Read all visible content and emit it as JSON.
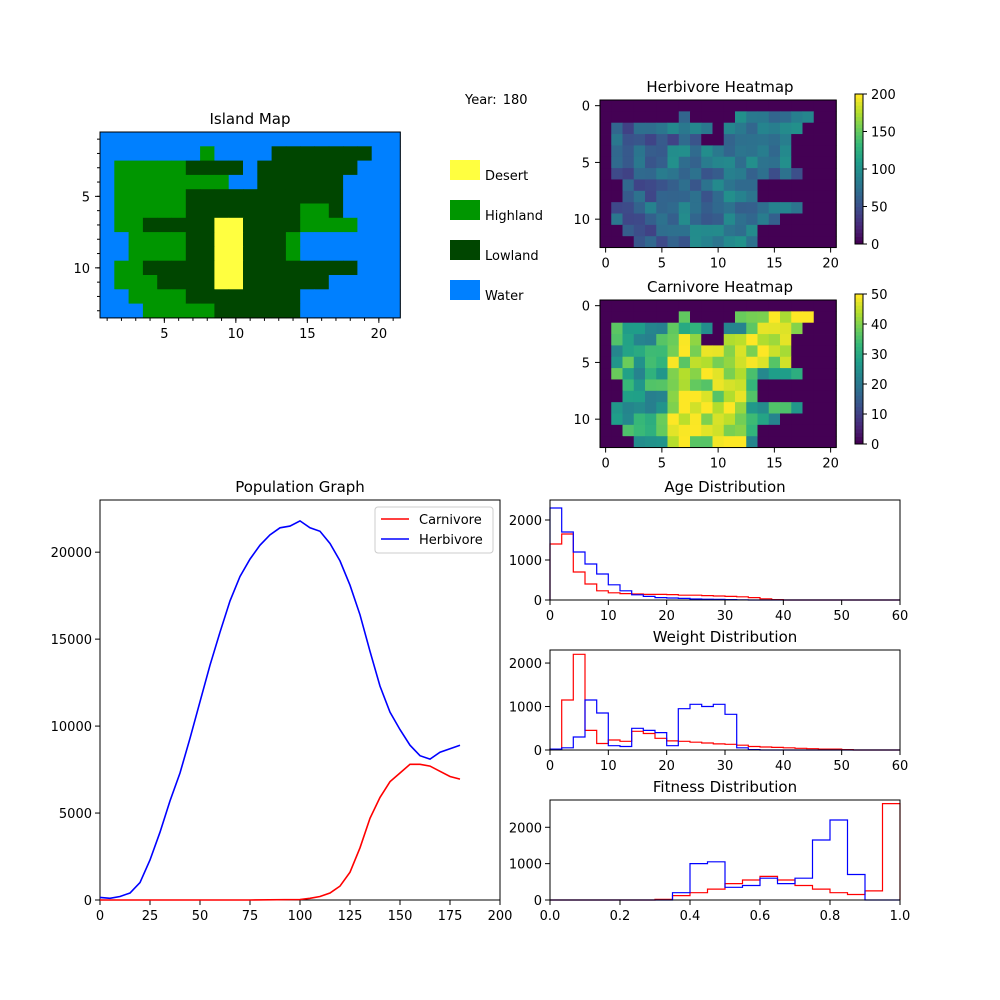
{
  "year_label": "Year:",
  "year_value": "180",
  "colors": {
    "desert": "#ffff40",
    "highland": "#009600",
    "lowland": "#004600",
    "water": "#0080ff",
    "carnivore": "#ff0000",
    "herbivore": "#0000ff"
  },
  "chart_data": [
    {
      "type": "heatmap",
      "title": "Island Map",
      "categories": [
        "Desert",
        "Highland",
        "Lowland",
        "Water"
      ],
      "grid_rows": [
        "WWWWWWWWWWWWWWWWWWWWW",
        "WWWWWWWHWWWWLLLLLLLWW",
        "WHHHHHLLLLWLLLLLLLWWW",
        "WHHHHHHHHWWLLLLLLWWWW",
        "WHHHHHLLLLLLLLLLLWWWW",
        "WHHHHHLLLLLLLLHHLWWWW",
        "WHHLLLLLDDLLLLHHHHWWW",
        "WWHHHHLLDDLLLHWWWWWWW",
        "WWHHHHLLDDLLLHWWWWWWW",
        "WHHLLLLLDDLLLLLLLLWWW",
        "WHHHLLLLDDLLLLLLWWWWW",
        "WWHHHHLLLLLLLLWWWWWWW",
        "WWWHHHHHLLLLLLWWWWWWW"
      ],
      "x_ticks": [
        5,
        10,
        15,
        20
      ],
      "y_ticks": [
        5,
        10
      ]
    },
    {
      "type": "heatmap",
      "title": "Herbivore Heatmap",
      "colorbar_ticks": [
        0,
        50,
        100,
        150,
        200
      ],
      "vmax": 200,
      "x_ticks": [
        0,
        5,
        10,
        15,
        20
      ],
      "y_ticks": [
        0,
        5,
        10
      ]
    },
    {
      "type": "heatmap",
      "title": "Carnivore Heatmap",
      "colorbar_ticks": [
        0,
        10,
        20,
        30,
        40,
        50
      ],
      "vmax": 50,
      "x_ticks": [
        0,
        5,
        10,
        15,
        20
      ],
      "y_ticks": [
        0,
        5,
        10
      ]
    },
    {
      "type": "line",
      "title": "Population Graph",
      "xlim": [
        0,
        200
      ],
      "ylim": [
        0,
        23000
      ],
      "x_ticks": [
        0,
        25,
        50,
        75,
        100,
        125,
        150,
        175,
        200
      ],
      "y_ticks": [
        0,
        5000,
        10000,
        15000,
        20000
      ],
      "legend_position": "top-right",
      "series": [
        {
          "name": "Carnivore",
          "x": [
            0,
            25,
            50,
            75,
            100,
            105,
            110,
            115,
            120,
            125,
            130,
            135,
            140,
            145,
            150,
            155,
            160,
            165,
            170,
            175,
            180
          ],
          "values": [
            0,
            0,
            0,
            0,
            30,
            100,
            200,
            400,
            800,
            1600,
            3000,
            4700,
            5900,
            6800,
            7300,
            7800,
            7800,
            7700,
            7400,
            7100,
            6950
          ]
        },
        {
          "name": "Herbivore",
          "x": [
            0,
            5,
            10,
            15,
            20,
            25,
            30,
            35,
            40,
            45,
            50,
            55,
            60,
            65,
            70,
            75,
            80,
            85,
            90,
            95,
            100,
            105,
            110,
            115,
            120,
            125,
            130,
            135,
            140,
            145,
            150,
            155,
            160,
            165,
            170,
            175,
            180
          ],
          "values": [
            150,
            100,
            200,
            400,
            1000,
            2300,
            3900,
            5700,
            7300,
            9300,
            11400,
            13500,
            15400,
            17200,
            18600,
            19600,
            20400,
            21000,
            21400,
            21500,
            21800,
            21400,
            21200,
            20500,
            19500,
            18100,
            16400,
            14300,
            12300,
            10800,
            9800,
            8900,
            8300,
            8100,
            8500,
            8700,
            8900
          ]
        }
      ]
    },
    {
      "type": "bar",
      "title": "Age Distribution",
      "xlim": [
        0,
        60
      ],
      "ylim": [
        0,
        2500
      ],
      "x_ticks": [
        0,
        10,
        20,
        30,
        40,
        50,
        60
      ],
      "y_ticks": [
        0,
        1000,
        2000
      ],
      "bin_width": 2,
      "series": [
        {
          "name": "Carnivore",
          "values": [
            1400,
            1650,
            700,
            400,
            230,
            180,
            160,
            150,
            140,
            140,
            135,
            120,
            120,
            110,
            100,
            90,
            80,
            60,
            30,
            10,
            0,
            0,
            0,
            0,
            0,
            0,
            0,
            0,
            0,
            0
          ]
        },
        {
          "name": "Herbivore",
          "values": [
            2300,
            1700,
            1200,
            900,
            650,
            380,
            230,
            130,
            90,
            60,
            50,
            40,
            25,
            20,
            15,
            10,
            5,
            0,
            0,
            0,
            0,
            0,
            0,
            0,
            0,
            0,
            0,
            0,
            0,
            0
          ]
        }
      ]
    },
    {
      "type": "bar",
      "title": "Weight Distribution",
      "xlim": [
        0,
        60
      ],
      "ylim": [
        0,
        2300
      ],
      "x_ticks": [
        0,
        10,
        20,
        30,
        40,
        50,
        60
      ],
      "y_ticks": [
        0,
        1000,
        2000
      ],
      "bin_width": 2,
      "series": [
        {
          "name": "Carnivore",
          "values": [
            20,
            1150,
            2200,
            450,
            150,
            230,
            200,
            430,
            380,
            270,
            210,
            200,
            180,
            160,
            140,
            130,
            110,
            80,
            70,
            60,
            50,
            40,
            30,
            20,
            20,
            10,
            0,
            0,
            0,
            0
          ]
        },
        {
          "name": "Herbivore",
          "values": [
            20,
            50,
            300,
            1150,
            850,
            100,
            80,
            500,
            450,
            400,
            100,
            950,
            1050,
            1000,
            1050,
            820,
            50,
            10,
            0,
            0,
            0,
            0,
            0,
            0,
            0,
            0,
            0,
            0,
            0,
            0
          ]
        }
      ]
    },
    {
      "type": "bar",
      "title": "Fitness Distribution",
      "xlim": [
        0.0,
        1.0
      ],
      "ylim": [
        0,
        2750
      ],
      "x_ticks": [
        0.0,
        0.2,
        0.4,
        0.6,
        0.8,
        1.0
      ],
      "y_ticks": [
        0,
        1000,
        2000
      ],
      "bin_width": 0.05,
      "series": [
        {
          "name": "Carnivore",
          "values": [
            0,
            0,
            0,
            0,
            0,
            0,
            20,
            120,
            200,
            300,
            450,
            550,
            650,
            550,
            400,
            300,
            200,
            150,
            250,
            2650
          ]
        },
        {
          "name": "Herbivore",
          "values": [
            0,
            0,
            0,
            0,
            0,
            0,
            0,
            200,
            1000,
            1050,
            350,
            400,
            600,
            450,
            600,
            1650,
            2200,
            700,
            0,
            0
          ]
        }
      ]
    }
  ]
}
